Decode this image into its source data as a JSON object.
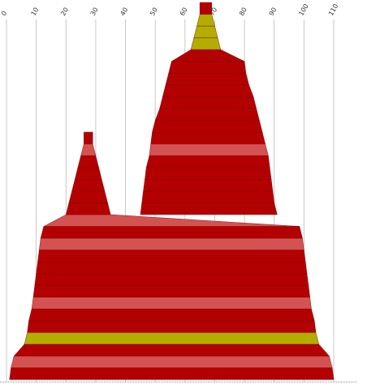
{
  "chart_data": {
    "type": "area",
    "title": "",
    "xlabel": "",
    "ylabel": "",
    "x_ticks": [
      "0",
      "10",
      "20",
      "30",
      "40",
      "50",
      "60",
      "70",
      "80",
      "90",
      "100",
      "110"
    ],
    "xlim": [
      0,
      110
    ],
    "grid": "vertical",
    "legend": "none",
    "layers": [
      {
        "extent": [
          1.0,
          110.0
        ],
        "color": "dark-red"
      },
      {
        "extent": [
          1.5,
          109.5
        ],
        "color": "light-red"
      },
      {
        "extent": [
          2.5,
          108.5
        ],
        "color": "dark-red"
      },
      {
        "extent": [
          6.0,
          105.0
        ],
        "color": "olive"
      },
      {
        "extent": [
          7.0,
          104.0
        ],
        "color": "dark-red"
      },
      {
        "extent": [
          7.5,
          103.5
        ],
        "color": "dark-red"
      },
      {
        "extent": [
          8.5,
          102.5
        ],
        "color": "light-red"
      },
      {
        "extent": [
          9.0,
          102.0
        ],
        "color": "dark-red"
      },
      {
        "extent": [
          9.5,
          101.5
        ],
        "color": "dark-red"
      },
      {
        "extent": [
          10.0,
          101.0
        ],
        "color": "dark-red"
      },
      {
        "extent": [
          10.5,
          100.5
        ],
        "color": "dark-red"
      },
      {
        "extent": [
          11.0,
          100.0
        ],
        "color": "light-red"
      },
      {
        "extent": [
          11.5,
          99.5
        ],
        "color": "dark-red"
      },
      {
        "extent": [
          12.5,
          98.5
        ],
        "color": "light-red"
      },
      {
        "extent": [
          20.0,
          35.0,
          45.0,
          91.0
        ],
        "color": "dark-red"
      },
      {
        "extent": [
          21.0,
          34.0,
          45.5,
          90.0
        ],
        "color": "dark-red"
      },
      {
        "extent": [
          22.0,
          33.0,
          46.0,
          89.5
        ],
        "color": "dark-red"
      },
      {
        "extent": [
          23.0,
          32.0,
          46.5,
          89.0
        ],
        "color": "dark-red"
      },
      {
        "extent": [
          24.0,
          31.0,
          47.0,
          88.5
        ],
        "color": "dark-red"
      },
      {
        "extent": [
          25.0,
          30.0,
          48.0,
          88.0
        ],
        "color": "light-red"
      },
      {
        "extent": [
          26.0,
          29.0,
          48.5,
          87.0
        ],
        "color": "dark-red"
      },
      {
        "extent": [
          49.0,
          86.0
        ],
        "color": "dark-red"
      },
      {
        "extent": [
          50.0,
          85.0
        ],
        "color": "dark-red"
      },
      {
        "extent": [
          51.5,
          84.0
        ],
        "color": "dark-red"
      },
      {
        "extent": [
          52.5,
          83.0
        ],
        "color": "dark-red"
      },
      {
        "extent": [
          53.5,
          81.5
        ],
        "color": "dark-red"
      },
      {
        "extent": [
          54.5,
          80.5
        ],
        "color": "dark-red"
      },
      {
        "extent": [
          55.5,
          80.0
        ],
        "color": "dark-red"
      },
      {
        "extent": [
          62.0,
          72.0
        ],
        "color": "olive"
      },
      {
        "extent": [
          63.0,
          71.0
        ],
        "color": "olive"
      },
      {
        "extent": [
          64.0,
          70.0
        ],
        "color": "olive"
      },
      {
        "extent": [
          65.0,
          69.0
        ],
        "color": "dark-red"
      }
    ]
  },
  "colors": {
    "dark-red": "#b30000",
    "light-red": "#d45252",
    "olive": "#b3ad00",
    "grid": "#bbbbbb",
    "axis": "#888888",
    "tick_text": "#333333"
  }
}
